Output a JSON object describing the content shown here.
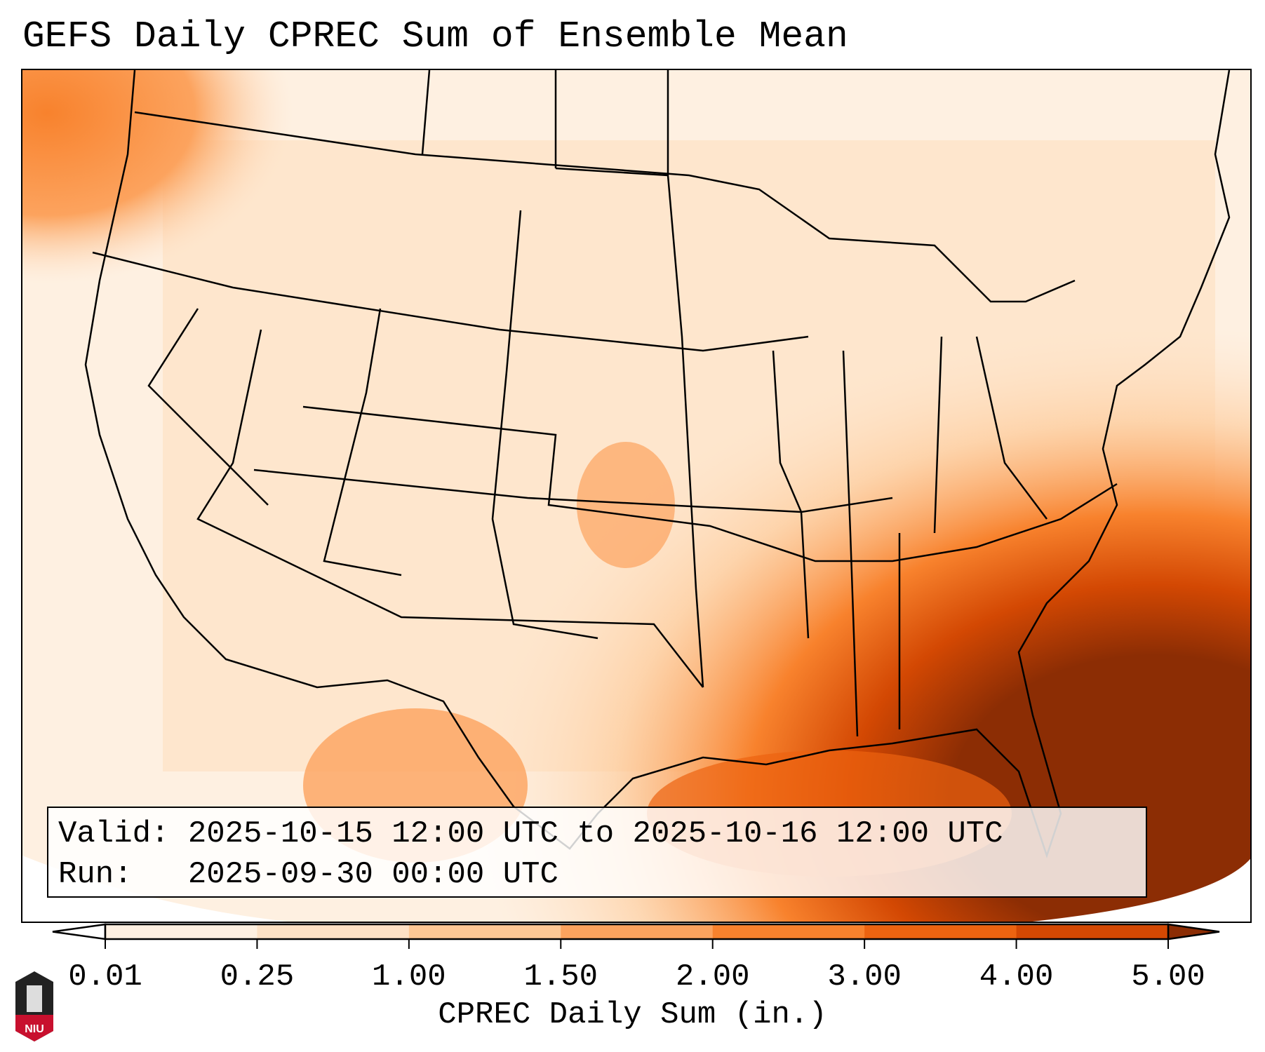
{
  "title": "GEFS Daily CPREC Sum of Ensemble Mean",
  "info": {
    "valid_line": "Valid: 2025-10-15 12:00 UTC to 2025-10-16 12:00 UTC",
    "run_line": "Run:   2025-09-30 00:00 UTC"
  },
  "chart_data": {
    "type": "heatmap",
    "title": "GEFS Daily CPREC Sum of Ensemble Mean",
    "colorbar": {
      "label": "CPREC Daily Sum (in.)",
      "levels": [
        0.01,
        0.25,
        1.0,
        1.5,
        2.0,
        3.0,
        4.0,
        5.0
      ],
      "tick_labels": [
        "0.01",
        "0.25",
        "1.00",
        "1.50",
        "2.00",
        "3.00",
        "4.00",
        "5.00"
      ],
      "colors": [
        "#fef0e1",
        "#fde1c5",
        "#fdc895",
        "#fca35e",
        "#f8822d",
        "#ec6310",
        "#d34803"
      ],
      "under_color": "#ffffff",
      "over_color": "#8c2d04",
      "extend": "both"
    },
    "region": "Contiguous United States",
    "pattern_summary": "Heaviest amounts (over 5 in.) off the Southeast coast and Florida; 1-3 in. over Gulf Coast and northern Mexico; light amounts elsewhere"
  },
  "logo": {
    "text": "NIU"
  }
}
